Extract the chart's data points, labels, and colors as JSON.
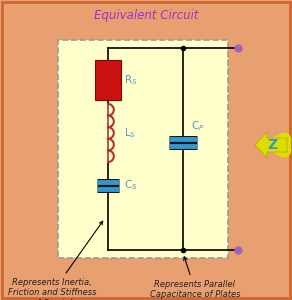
{
  "title": "Equivalent Circuit",
  "title_color": "#9933CC",
  "bg_outer": "#E8A070",
  "bg_inner": "#FFFFCC",
  "border_outer": "#CC6633",
  "wire_color": "#000000",
  "resistor_color": "#CC1111",
  "resistor_edge": "#880000",
  "inductor_color": "#AA3333",
  "capacitor_plate_color": "#3399CC",
  "capacitor_black": "#111111",
  "label_color": "#5599CC",
  "label_rs": "R$_S$",
  "label_ls": "L$_S$",
  "label_cs": "C$_S$",
  "label_cp": "C$_P$",
  "label_z": "Z",
  "z_arrow_color": "#DDDD00",
  "z_text_color": "#3399CC",
  "annotation1": "Represents Inertia,\nFriction and Stiffness\nof Crystal",
  "annotation2": "Represents Parallel\nCapacitance of Plates",
  "annotation_color": "#222222",
  "node_color": "#9966BB",
  "figsize": [
    2.92,
    3.0
  ],
  "dpi": 100
}
